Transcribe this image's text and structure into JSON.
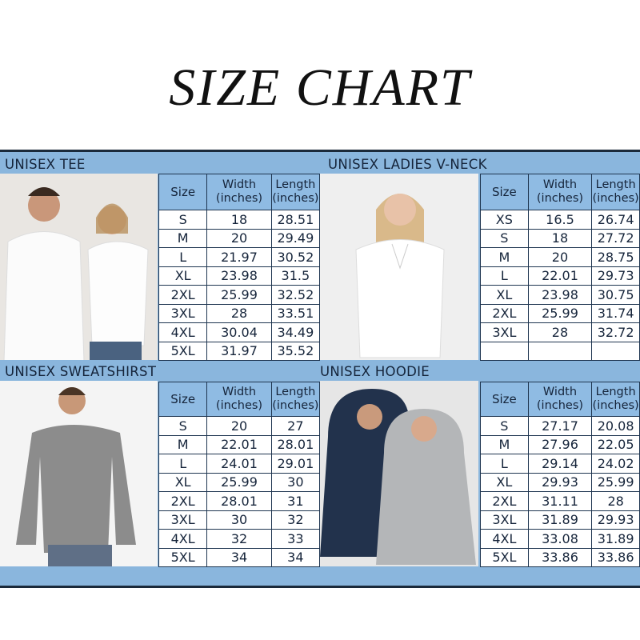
{
  "title": "SIZE CHART",
  "header": {
    "size": "Size",
    "width": "Width\n(inches)",
    "length": "Length\n(inches)",
    "width_l1": "Width",
    "width_l2": "(inches)",
    "length_l1": "Length",
    "length_l2": "(inches)"
  },
  "colors": {
    "band": "#8ab6dd",
    "header_cell": "#8fbbe3",
    "border": "#1e3550"
  },
  "sections": [
    {
      "title": "UNISEX TEE",
      "rows": [
        [
          "S",
          "18",
          "28.51"
        ],
        [
          "M",
          "20",
          "29.49"
        ],
        [
          "L",
          "21.97",
          "30.52"
        ],
        [
          "XL",
          "23.98",
          "31.5"
        ],
        [
          "2XL",
          "25.99",
          "32.52"
        ],
        [
          "3XL",
          "28",
          "33.51"
        ],
        [
          "4XL",
          "30.04",
          "34.49"
        ],
        [
          "5XL",
          "31.97",
          "35.52"
        ]
      ]
    },
    {
      "title": "UNISEX LADIES V-NECK",
      "rows": [
        [
          "XS",
          "16.5",
          "26.74"
        ],
        [
          "S",
          "18",
          "27.72"
        ],
        [
          "M",
          "20",
          "28.75"
        ],
        [
          "L",
          "22.01",
          "29.73"
        ],
        [
          "XL",
          "23.98",
          "30.75"
        ],
        [
          "2XL",
          "25.99",
          "31.74"
        ],
        [
          "3XL",
          "28",
          "32.72"
        ],
        [
          "",
          "",
          ""
        ]
      ]
    },
    {
      "title": "UNISEX SWEATSHIRST",
      "rows": [
        [
          "S",
          "20",
          "27"
        ],
        [
          "M",
          "22.01",
          "28.01"
        ],
        [
          "L",
          "24.01",
          "29.01"
        ],
        [
          "XL",
          "25.99",
          "30"
        ],
        [
          "2XL",
          "28.01",
          "31"
        ],
        [
          "3XL",
          "30",
          "32"
        ],
        [
          "4XL",
          "32",
          "33"
        ],
        [
          "5XL",
          "34",
          "34"
        ]
      ]
    },
    {
      "title": "UNISEX HOODIE",
      "rows": [
        [
          "S",
          "27.17",
          "20.08"
        ],
        [
          "M",
          "27.96",
          "22.05"
        ],
        [
          "L",
          "29.14",
          "24.02"
        ],
        [
          "XL",
          "29.93",
          "25.99"
        ],
        [
          "2XL",
          "31.11",
          "28"
        ],
        [
          "3XL",
          "31.89",
          "29.93"
        ],
        [
          "4XL",
          "33.08",
          "31.89"
        ],
        [
          "5XL",
          "33.86",
          "33.86"
        ]
      ]
    }
  ]
}
